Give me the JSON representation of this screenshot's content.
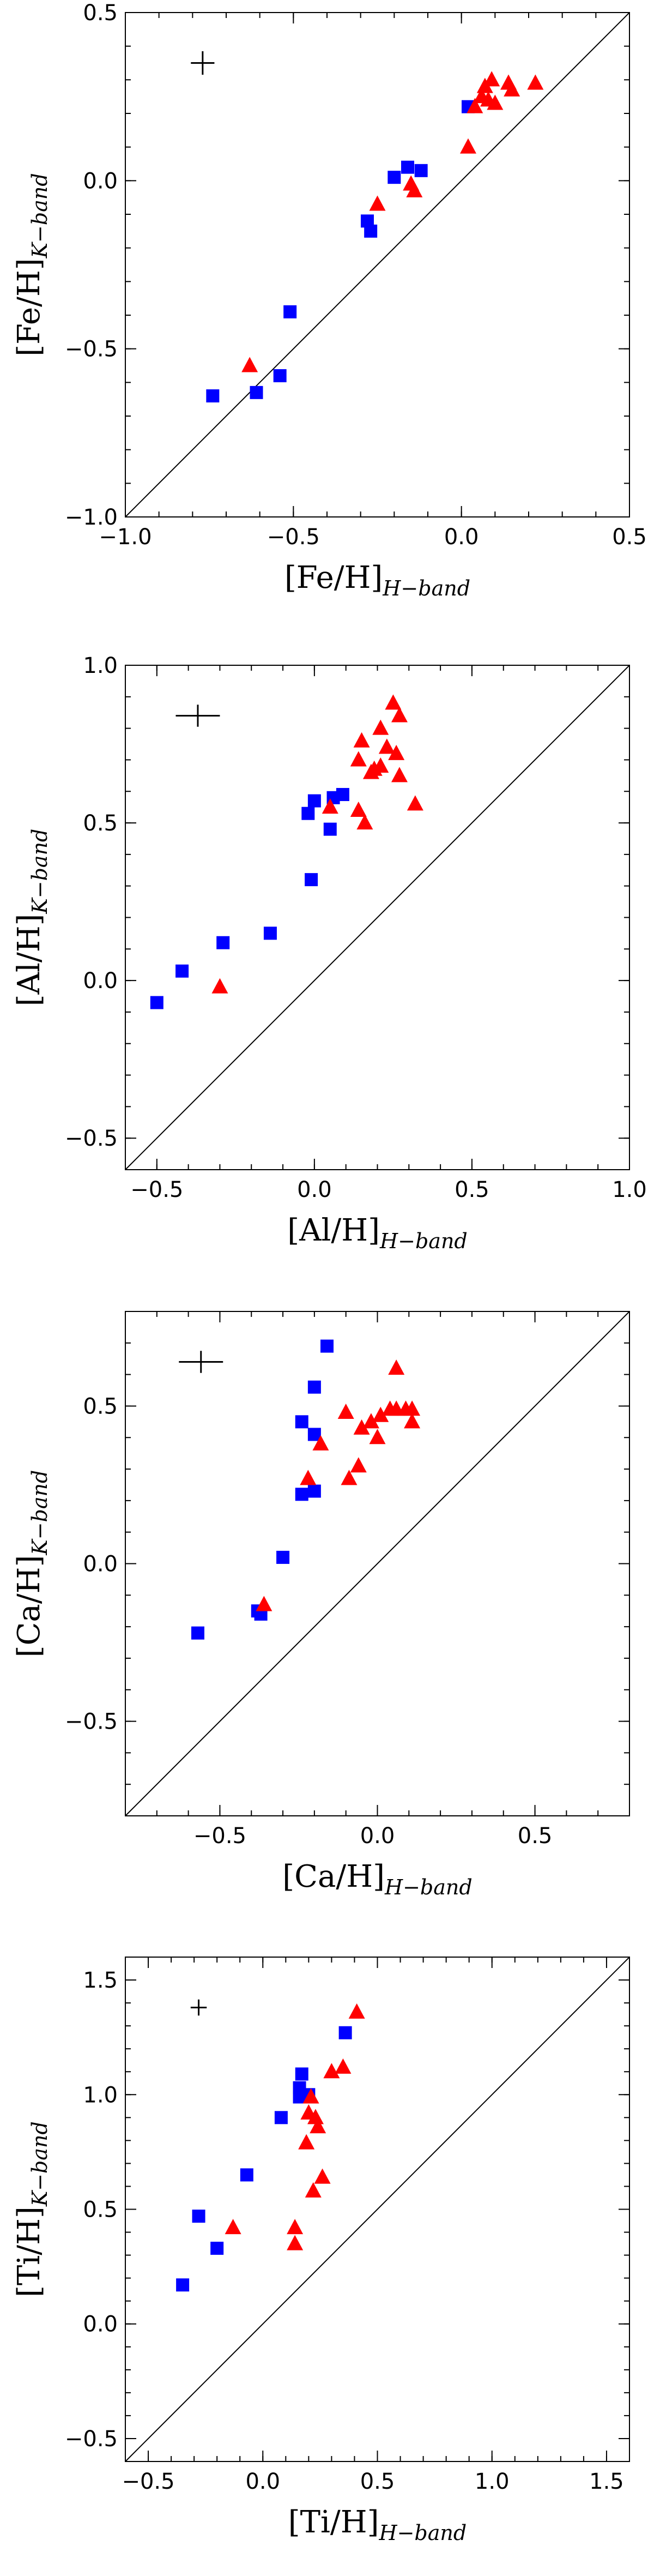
{
  "chart_data": [
    {
      "type": "scatter",
      "xlabel": {
        "main": "[Fe/H]",
        "sub": "H−band"
      },
      "ylabel": {
        "main": "[Fe/H]",
        "sub": "K−band"
      },
      "xlim": [
        -1.0,
        0.5
      ],
      "ylim": [
        -1.0,
        0.5
      ],
      "xticks": [
        -1.0,
        -0.5,
        0.0,
        0.5
      ],
      "yticks": [
        -1.0,
        -0.5,
        0.0,
        0.5
      ],
      "xtick_labels": [
        "−1.0",
        "−0.5",
        "0.0",
        "0.5"
      ],
      "ytick_labels": [
        "−1.0",
        "−0.5",
        "0.0",
        "0.5"
      ],
      "minor_step": 0.1,
      "identity_line": true,
      "error_bar": {
        "x": -0.77,
        "y": 0.35,
        "xerr": 0.035,
        "yerr": 0.035
      },
      "series": [
        {
          "marker": "square",
          "color": "#0000ff",
          "points": [
            [
              -0.74,
              -0.64
            ],
            [
              -0.61,
              -0.63
            ],
            [
              -0.54,
              -0.58
            ],
            [
              -0.51,
              -0.39
            ],
            [
              -0.28,
              -0.12
            ],
            [
              -0.27,
              -0.15
            ],
            [
              -0.2,
              0.01
            ],
            [
              -0.16,
              0.04
            ],
            [
              -0.12,
              0.03
            ],
            [
              0.02,
              0.22
            ]
          ]
        },
        {
          "marker": "triangle",
          "color": "#ff0000",
          "points": [
            [
              -0.63,
              -0.55
            ],
            [
              -0.25,
              -0.07
            ],
            [
              -0.15,
              -0.01
            ],
            [
              -0.14,
              -0.03
            ],
            [
              0.02,
              0.1
            ],
            [
              0.04,
              0.22
            ],
            [
              0.06,
              0.25
            ],
            [
              0.07,
              0.28
            ],
            [
              0.08,
              0.24
            ],
            [
              0.09,
              0.3
            ],
            [
              0.1,
              0.23
            ],
            [
              0.14,
              0.29
            ],
            [
              0.15,
              0.27
            ],
            [
              0.22,
              0.29
            ]
          ]
        }
      ]
    },
    {
      "type": "scatter",
      "xlabel": {
        "main": "[Al/H]",
        "sub": "H−band"
      },
      "ylabel": {
        "main": "[Al/H]",
        "sub": "K−band"
      },
      "xlim": [
        -0.6,
        1.0
      ],
      "ylim": [
        -0.6,
        1.0
      ],
      "xticks": [
        -0.5,
        0.0,
        0.5,
        1.0
      ],
      "yticks": [
        -0.5,
        0.0,
        0.5,
        1.0
      ],
      "xtick_labels": [
        "−0.5",
        "0.0",
        "0.5",
        "1.0"
      ],
      "ytick_labels": [
        "−0.5",
        "0.0",
        "0.5",
        "1.0"
      ],
      "minor_step": 0.1,
      "identity_line": true,
      "error_bar": {
        "x": -0.37,
        "y": 0.84,
        "xerr": 0.07,
        "yerr": 0.035
      },
      "series": [
        {
          "marker": "square",
          "color": "#0000ff",
          "points": [
            [
              -0.5,
              -0.07
            ],
            [
              -0.42,
              0.03
            ],
            [
              -0.29,
              0.12
            ],
            [
              -0.14,
              0.15
            ],
            [
              -0.01,
              0.32
            ],
            [
              -0.02,
              0.53
            ],
            [
              0.0,
              0.57
            ],
            [
              0.05,
              0.48
            ],
            [
              0.06,
              0.58
            ],
            [
              0.09,
              0.59
            ]
          ]
        },
        {
          "marker": "triangle",
          "color": "#ff0000",
          "points": [
            [
              -0.3,
              -0.02
            ],
            [
              0.05,
              0.55
            ],
            [
              0.14,
              0.54
            ],
            [
              0.16,
              0.5
            ],
            [
              0.14,
              0.7
            ],
            [
              0.15,
              0.76
            ],
            [
              0.18,
              0.66
            ],
            [
              0.19,
              0.67
            ],
            [
              0.21,
              0.68
            ],
            [
              0.21,
              0.8
            ],
            [
              0.23,
              0.74
            ],
            [
              0.25,
              0.88
            ],
            [
              0.26,
              0.72
            ],
            [
              0.27,
              0.84
            ],
            [
              0.27,
              0.65
            ],
            [
              0.32,
              0.56
            ]
          ]
        }
      ]
    },
    {
      "type": "scatter",
      "xlabel": {
        "main": "[Ca/H]",
        "sub": "H−band"
      },
      "ylabel": {
        "main": "[Ca/H]",
        "sub": "K−band"
      },
      "xlim": [
        -0.8,
        0.8
      ],
      "ylim": [
        -0.8,
        0.8
      ],
      "xticks": [
        -0.5,
        0.0,
        0.5
      ],
      "yticks": [
        -0.5,
        0.0,
        0.5
      ],
      "xtick_labels": [
        "−0.5",
        "0.0",
        "0.5"
      ],
      "ytick_labels": [
        "−0.5",
        "0.0",
        "0.5"
      ],
      "minor_step": 0.1,
      "identity_line": true,
      "error_bar": {
        "x": -0.56,
        "y": 0.64,
        "xerr": 0.07,
        "yerr": 0.035
      },
      "series": [
        {
          "marker": "square",
          "color": "#0000ff",
          "points": [
            [
              -0.57,
              -0.22
            ],
            [
              -0.38,
              -0.15
            ],
            [
              -0.37,
              -0.16
            ],
            [
              -0.3,
              0.02
            ],
            [
              -0.24,
              0.22
            ],
            [
              -0.24,
              0.45
            ],
            [
              -0.2,
              0.23
            ],
            [
              -0.2,
              0.41
            ],
            [
              -0.2,
              0.56
            ],
            [
              -0.16,
              0.69
            ]
          ]
        },
        {
          "marker": "triangle",
          "color": "#ff0000",
          "points": [
            [
              -0.36,
              -0.13
            ],
            [
              -0.22,
              0.27
            ],
            [
              -0.18,
              0.38
            ],
            [
              -0.1,
              0.48
            ],
            [
              -0.09,
              0.27
            ],
            [
              -0.06,
              0.31
            ],
            [
              -0.05,
              0.43
            ],
            [
              -0.02,
              0.45
            ],
            [
              0.0,
              0.4
            ],
            [
              0.01,
              0.47
            ],
            [
              0.04,
              0.49
            ],
            [
              0.06,
              0.62
            ],
            [
              0.06,
              0.49
            ],
            [
              0.09,
              0.49
            ],
            [
              0.11,
              0.49
            ],
            [
              0.11,
              0.45
            ]
          ]
        }
      ]
    },
    {
      "type": "scatter",
      "xlabel": {
        "main": "[Ti/H]",
        "sub": "H−band"
      },
      "ylabel": {
        "main": "[Ti/H]",
        "sub": "K−band"
      },
      "xlim": [
        -0.6,
        1.6
      ],
      "ylim": [
        -0.6,
        1.6
      ],
      "xticks": [
        -0.5,
        0.0,
        0.5,
        1.0,
        1.5
      ],
      "yticks": [
        -0.5,
        0.0,
        0.5,
        1.0,
        1.5
      ],
      "xtick_labels": [
        "−0.5",
        "0.0",
        "0.5",
        "1.0",
        "1.5"
      ],
      "ytick_labels": [
        "−0.5",
        "0.0",
        "0.5",
        "1.0",
        "1.5"
      ],
      "minor_step": 0.1,
      "identity_line": true,
      "error_bar": {
        "x": -0.28,
        "y": 1.38,
        "xerr": 0.035,
        "yerr": 0.035
      },
      "series": [
        {
          "marker": "square",
          "color": "#0000ff",
          "points": [
            [
              -0.35,
              0.17
            ],
            [
              -0.28,
              0.47
            ],
            [
              -0.2,
              0.33
            ],
            [
              -0.07,
              0.65
            ],
            [
              0.08,
              0.9
            ],
            [
              0.16,
              0.99
            ],
            [
              0.16,
              1.03
            ],
            [
              0.17,
              1.09
            ],
            [
              0.2,
              1.0
            ],
            [
              0.36,
              1.27
            ]
          ]
        },
        {
          "marker": "triangle",
          "color": "#ff0000",
          "points": [
            [
              -0.13,
              0.42
            ],
            [
              0.14,
              0.42
            ],
            [
              0.14,
              0.35
            ],
            [
              0.19,
              0.79
            ],
            [
              0.2,
              0.92
            ],
            [
              0.21,
              0.99
            ],
            [
              0.22,
              0.58
            ],
            [
              0.23,
              0.9
            ],
            [
              0.24,
              0.86
            ],
            [
              0.26,
              0.64
            ],
            [
              0.3,
              1.1
            ],
            [
              0.35,
              1.12
            ],
            [
              0.41,
              1.36
            ]
          ]
        }
      ]
    }
  ]
}
